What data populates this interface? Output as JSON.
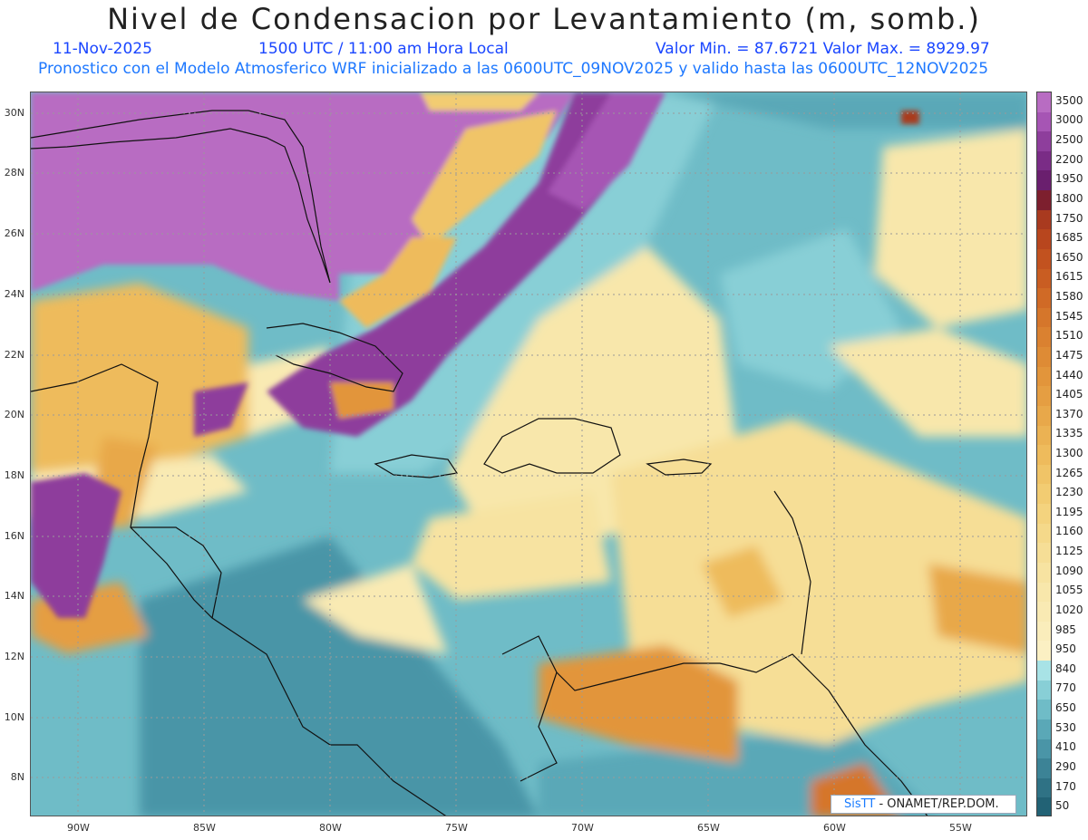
{
  "title": "Nivel de Condensacion por Levantamiento (m, somb.)",
  "header": {
    "date": "11-Nov-2025",
    "time": "1500 UTC / 11:00 am Hora Local",
    "minmax": "Valor Min. = 87.6721   Valor Max. = 8929.97",
    "model": "Pronostico con el Modelo Atmosferico WRF inicializado a las 0600UTC_09NOV2025 y valido hasta las  0600UTC_12NOV2025"
  },
  "axes": {
    "lat_labels": [
      "30N",
      "28N",
      "26N",
      "24N",
      "22N",
      "20N",
      "18N",
      "16N",
      "14N",
      "12N",
      "10N",
      "8N"
    ],
    "lon_labels": [
      "90W",
      "85W",
      "80W",
      "75W",
      "70W",
      "65W",
      "60W",
      "55W"
    ]
  },
  "colorbar": {
    "levels": [
      "3500",
      "3000",
      "2500",
      "2200",
      "1950",
      "1800",
      "1750",
      "1685",
      "1650",
      "1615",
      "1580",
      "1545",
      "1510",
      "1475",
      "1440",
      "1405",
      "1370",
      "1335",
      "1300",
      "1265",
      "1230",
      "1195",
      "1160",
      "1125",
      "1090",
      "1055",
      "1020",
      "985",
      "950",
      "840",
      "770",
      "650",
      "530",
      "410",
      "290",
      "170",
      "50"
    ],
    "colors": [
      "#b86cc2",
      "#a655b4",
      "#8e3e9c",
      "#7a2c86",
      "#6a1f6e",
      "#7d1f2e",
      "#a93a1f",
      "#b8461e",
      "#c2521f",
      "#c95d22",
      "#d06a26",
      "#d5762b",
      "#da8130",
      "#de8b35",
      "#e2953b",
      "#e59e42",
      "#e8a84a",
      "#ebb253",
      "#eebb5c",
      "#f0c467",
      "#f2cc72",
      "#f4d37e",
      "#f5d98a",
      "#f6de96",
      "#f7e3a1",
      "#f8e7ab",
      "#f9eab3",
      "#faedbb",
      "#fbf0c3",
      "#a8e3e6",
      "#88cfd6",
      "#6fbcc7",
      "#5aa8b7",
      "#4a95a7",
      "#3c8396",
      "#2f7285",
      "#226275"
    ]
  },
  "credit": {
    "brand": "SisTT",
    "text": "- ONAMET/REP.DOM."
  }
}
